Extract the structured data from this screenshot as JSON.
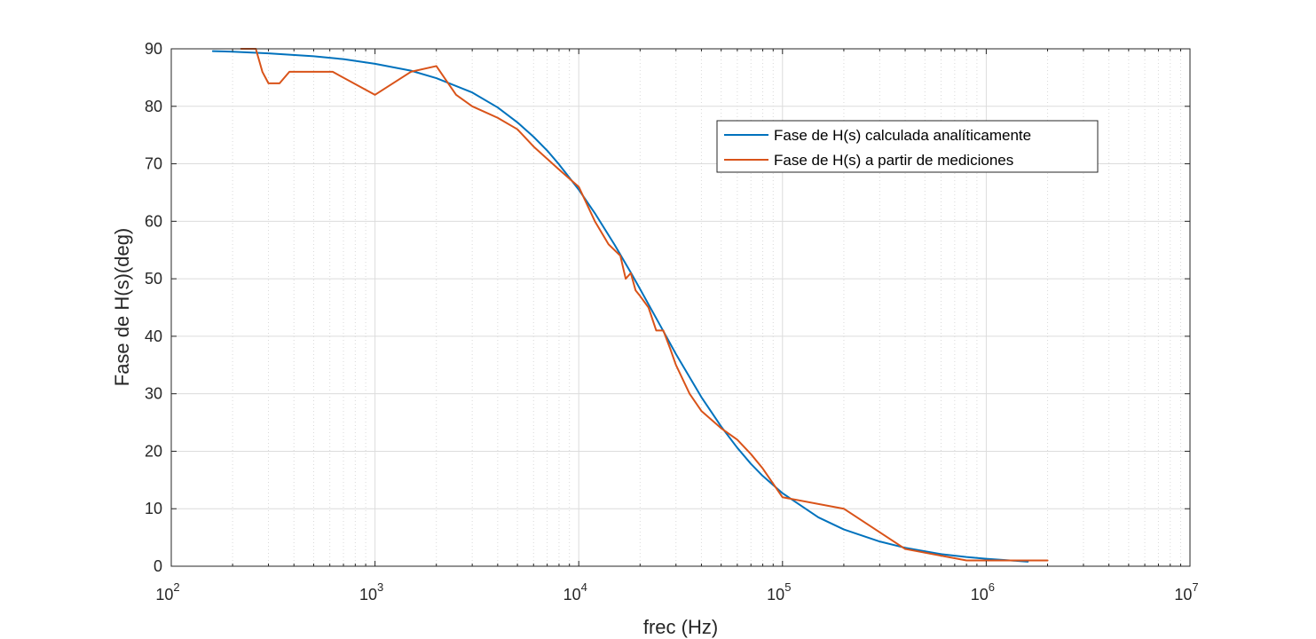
{
  "chart_data": {
    "type": "line",
    "title": "",
    "xlabel": "frec (Hz)",
    "ylabel": "Fase de H(s)(deg)",
    "xscale": "log",
    "xlim": [
      100,
      10000000
    ],
    "ylim": [
      0,
      90
    ],
    "x_ticks": [
      100,
      1000,
      10000,
      100000,
      1000000,
      10000000
    ],
    "x_tick_labels": [
      {
        "base": "10",
        "exp": "2"
      },
      {
        "base": "10",
        "exp": "3"
      },
      {
        "base": "10",
        "exp": "4"
      },
      {
        "base": "10",
        "exp": "5"
      },
      {
        "base": "10",
        "exp": "6"
      },
      {
        "base": "10",
        "exp": "7"
      }
    ],
    "y_ticks": [
      0,
      10,
      20,
      30,
      40,
      50,
      60,
      70,
      80,
      90
    ],
    "y_tick_labels": [
      "0",
      "10",
      "20",
      "30",
      "40",
      "50",
      "60",
      "70",
      "80",
      "90"
    ],
    "grid": true,
    "minor_grid": true,
    "legend_position": "upper-right",
    "series": [
      {
        "name": "Fase de H(s) calculada analíticamente",
        "color": "#0072BD",
        "x": [
          160,
          200,
          300,
          500,
          700,
          1000,
          1500,
          2000,
          3000,
          4000,
          5000,
          6000,
          7000,
          8000,
          10000,
          12000,
          15000,
          18000,
          20000,
          25000,
          30000,
          40000,
          50000,
          60000,
          70000,
          80000,
          100000,
          150000,
          200000,
          300000,
          400000,
          600000,
          800000,
          1000000,
          1600000
        ],
        "y": [
          89.6,
          89.5,
          89.2,
          88.7,
          88.2,
          87.4,
          86.2,
          84.9,
          82.4,
          79.8,
          77.2,
          74.7,
          72.3,
          69.9,
          65.5,
          61.4,
          55.9,
          51.1,
          48.2,
          42.0,
          36.9,
          29.4,
          24.3,
          20.6,
          17.8,
          15.7,
          12.7,
          8.5,
          6.4,
          4.3,
          3.2,
          2.1,
          1.6,
          1.3,
          0.8
        ]
      },
      {
        "name": "Fase de H(s) a partir de mediciones",
        "color": "#D95319",
        "x": [
          220,
          260,
          280,
          300,
          340,
          380,
          450,
          620,
          1000,
          1500,
          2000,
          2500,
          3000,
          4000,
          5000,
          6000,
          8000,
          10000,
          12000,
          14000,
          16000,
          17000,
          18000,
          19000,
          20000,
          22000,
          24000,
          26000,
          28000,
          30000,
          35000,
          40000,
          50000,
          60000,
          70000,
          80000,
          100000,
          200000,
          400000,
          800000,
          1000000,
          2000000
        ],
        "y": [
          90,
          90,
          86,
          84,
          84,
          86,
          86,
          86,
          82,
          86,
          87,
          82,
          80,
          78,
          76,
          73,
          69,
          66,
          60,
          56,
          54,
          50,
          51,
          48,
          47,
          45,
          41,
          41,
          38,
          35,
          30,
          27,
          24,
          22,
          19.5,
          17,
          12,
          10,
          3,
          1,
          1,
          1
        ]
      }
    ]
  }
}
